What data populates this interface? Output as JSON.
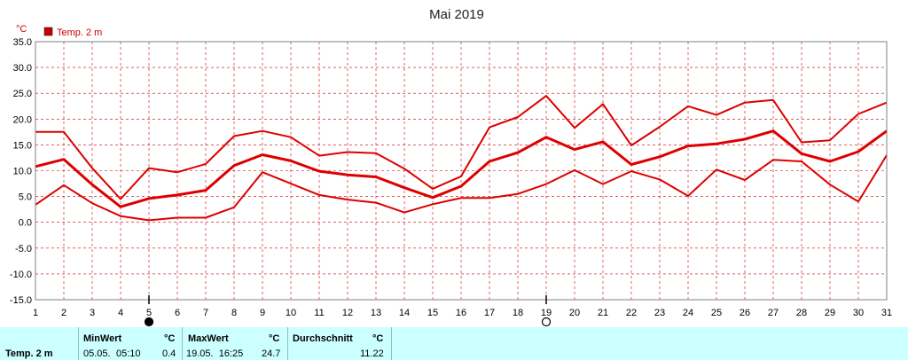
{
  "chart_data": {
    "type": "line",
    "title": "Mai 2019",
    "yunit": "°C",
    "legend": [
      {
        "label": "Temp. 2 m",
        "color": "#cc0000"
      }
    ],
    "legend_placement": "top-left",
    "x": [
      1,
      2,
      3,
      4,
      5,
      6,
      7,
      8,
      9,
      10,
      11,
      12,
      13,
      14,
      15,
      16,
      17,
      18,
      19,
      20,
      21,
      22,
      23,
      24,
      25,
      26,
      27,
      28,
      29,
      30,
      31
    ],
    "ylim": [
      -15,
      35
    ],
    "yticks": [
      "35.0",
      "30.0",
      "25.0",
      "20.0",
      "15.0",
      "10.0",
      "5.0",
      "0.0",
      "-5.0",
      "-10.0",
      "-15.0"
    ],
    "grid": true,
    "series": [
      {
        "role": "max",
        "values": [
          17.5,
          17.5,
          10.5,
          4.5,
          10.5,
          9.7,
          11.3,
          16.7,
          17.7,
          16.5,
          12.9,
          13.6,
          13.4,
          10.4,
          6.5,
          8.9,
          18.4,
          20.4,
          24.5,
          18.3,
          22.9,
          14.9,
          18.5,
          22.5,
          20.8,
          23.2,
          23.7,
          15.5,
          15.9,
          21.0,
          23.2
        ]
      },
      {
        "role": "mean",
        "values": [
          10.8,
          12.2,
          7.3,
          3.0,
          4.6,
          5.3,
          6.2,
          11.0,
          13.1,
          11.9,
          9.9,
          9.2,
          8.8,
          6.7,
          4.8,
          7.0,
          11.8,
          13.5,
          16.5,
          14.1,
          15.6,
          11.2,
          12.7,
          14.8,
          15.2,
          16.1,
          17.7,
          13.3,
          11.8,
          13.7,
          17.7
        ]
      },
      {
        "role": "min",
        "values": [
          3.4,
          7.2,
          3.7,
          1.2,
          0.4,
          0.9,
          0.9,
          2.9,
          9.7,
          7.5,
          5.3,
          4.4,
          3.8,
          1.9,
          3.5,
          4.7,
          4.7,
          5.5,
          7.4,
          10.1,
          7.4,
          9.9,
          8.3,
          5.1,
          10.2,
          8.2,
          12.1,
          11.8,
          7.3,
          4.0,
          13.0
        ]
      }
    ],
    "markers": [
      {
        "day": 5,
        "symbol": "new-moon"
      },
      {
        "day": 19,
        "symbol": "full-moon"
      }
    ]
  },
  "footer": {
    "param_label": "Temp. 2 m",
    "min_header": "MinWert",
    "min_unit": "°C",
    "min_date": "05.05.",
    "min_time": "05:10",
    "min_value": "0.4",
    "max_header": "MaxWert",
    "max_unit": "°C",
    "max_datetime": "19.05.  16:25",
    "max_value": "24.7",
    "avg_header": "Durchschnitt",
    "avg_unit": "°C",
    "avg_value": "11.22"
  },
  "colors": {
    "line": "#dd0000",
    "grid": "#cc0000",
    "footer_bg": "#ccffff"
  }
}
